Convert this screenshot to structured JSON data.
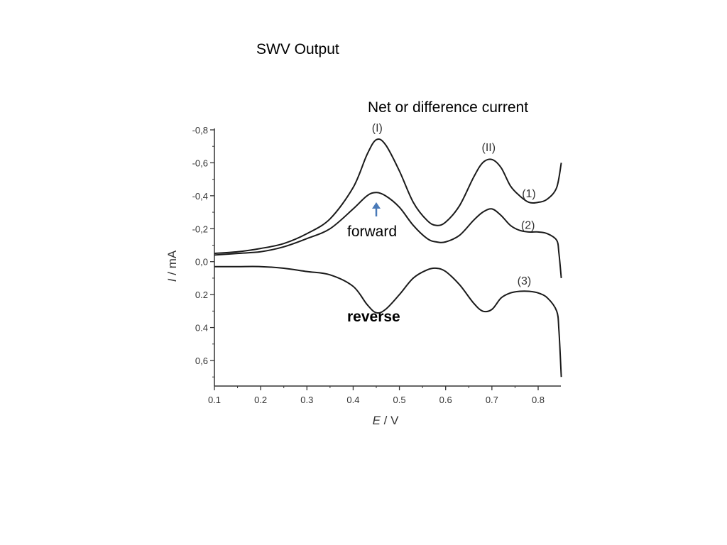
{
  "slide": {
    "title": "SWV Output",
    "net_label": "Net or difference current",
    "forward_label": "forward",
    "reverse_label": "reverse"
  },
  "colors": {
    "curve": "#1a1a1a",
    "axis": "#333333",
    "arrow": "#4a7ab8"
  },
  "chart_data": {
    "type": "line",
    "xlabel_italic": "E",
    "xlabel_rest": " / V",
    "ylabel_italic": "I",
    "ylabel_rest": " / mA",
    "xlim": [
      0.1,
      0.85
    ],
    "ylim": [
      -0.8,
      0.72
    ],
    "y_axis_inverted": true,
    "x_ticks": [
      {
        "value": 0.1,
        "label": "0.1"
      },
      {
        "value": 0.2,
        "label": "0.2"
      },
      {
        "value": 0.3,
        "label": "0.3"
      },
      {
        "value": 0.4,
        "label": "0.4"
      },
      {
        "value": 0.5,
        "label": "0.5"
      },
      {
        "value": 0.6,
        "label": "0.6"
      },
      {
        "value": 0.7,
        "label": "0.7"
      },
      {
        "value": 0.8,
        "label": "0.8"
      }
    ],
    "y_ticks": [
      {
        "value": -0.8,
        "label": "-0,8"
      },
      {
        "value": -0.6,
        "label": "-0,6"
      },
      {
        "value": -0.4,
        "label": "-0,4"
      },
      {
        "value": -0.2,
        "label": "-0,2"
      },
      {
        "value": 0.0,
        "label": "0,0"
      },
      {
        "value": 0.2,
        "label": "0.2"
      },
      {
        "value": 0.4,
        "label": "0.4"
      },
      {
        "value": 0.6,
        "label": "0,6"
      }
    ],
    "series": [
      {
        "name": "(1)",
        "x": [
          0.1,
          0.15,
          0.2,
          0.25,
          0.3,
          0.35,
          0.4,
          0.43,
          0.45,
          0.47,
          0.5,
          0.53,
          0.56,
          0.58,
          0.6,
          0.63,
          0.66,
          0.68,
          0.7,
          0.72,
          0.74,
          0.76,
          0.78,
          0.8,
          0.82,
          0.84,
          0.85
        ],
        "y": [
          -0.05,
          -0.06,
          -0.08,
          -0.11,
          -0.17,
          -0.26,
          -0.45,
          -0.65,
          -0.74,
          -0.71,
          -0.55,
          -0.36,
          -0.25,
          -0.22,
          -0.24,
          -0.34,
          -0.51,
          -0.6,
          -0.62,
          -0.57,
          -0.46,
          -0.4,
          -0.36,
          -0.36,
          -0.38,
          -0.45,
          -0.6
        ]
      },
      {
        "name": "(2)",
        "x": [
          0.1,
          0.15,
          0.2,
          0.25,
          0.3,
          0.35,
          0.4,
          0.43,
          0.45,
          0.47,
          0.5,
          0.53,
          0.56,
          0.58,
          0.6,
          0.63,
          0.66,
          0.68,
          0.7,
          0.72,
          0.74,
          0.76,
          0.78,
          0.8,
          0.82,
          0.84,
          0.845,
          0.85
        ],
        "y": [
          -0.04,
          -0.05,
          -0.06,
          -0.09,
          -0.14,
          -0.2,
          -0.32,
          -0.4,
          -0.42,
          -0.4,
          -0.33,
          -0.22,
          -0.14,
          -0.12,
          -0.12,
          -0.16,
          -0.25,
          -0.3,
          -0.32,
          -0.28,
          -0.22,
          -0.19,
          -0.18,
          -0.18,
          -0.17,
          -0.13,
          -0.05,
          0.1
        ]
      },
      {
        "name": "(3)",
        "x": [
          0.1,
          0.15,
          0.2,
          0.25,
          0.3,
          0.35,
          0.4,
          0.43,
          0.45,
          0.47,
          0.5,
          0.53,
          0.56,
          0.58,
          0.6,
          0.63,
          0.66,
          0.68,
          0.7,
          0.72,
          0.74,
          0.76,
          0.78,
          0.8,
          0.82,
          0.84,
          0.845,
          0.85
        ],
        "y": [
          0.03,
          0.03,
          0.03,
          0.04,
          0.06,
          0.08,
          0.15,
          0.26,
          0.31,
          0.29,
          0.2,
          0.1,
          0.05,
          0.04,
          0.06,
          0.14,
          0.25,
          0.3,
          0.29,
          0.22,
          0.19,
          0.18,
          0.18,
          0.19,
          0.22,
          0.3,
          0.42,
          0.7
        ]
      }
    ],
    "annotations": [
      {
        "text": "(I)",
        "x": 0.452,
        "y": -0.79
      },
      {
        "text": "(II)",
        "x": 0.693,
        "y": -0.67
      },
      {
        "text": "(1)",
        "x": 0.78,
        "y": -0.39
      },
      {
        "text": "(2)",
        "x": 0.778,
        "y": -0.2
      },
      {
        "text": "(3)",
        "x": 0.77,
        "y": 0.14
      }
    ]
  }
}
